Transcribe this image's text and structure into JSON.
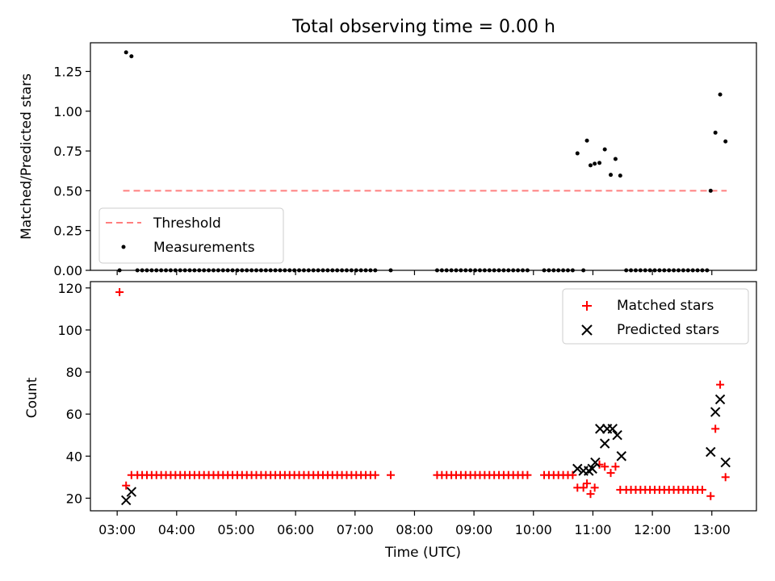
{
  "chart_data": [
    {
      "type": "scatter",
      "title": "Total observing time = 0.00 h",
      "ylabel": "Matched/Predicted stars",
      "xlabel": "",
      "ylim": [
        0,
        1.43
      ],
      "yticks": [
        "0.00",
        "0.25",
        "0.50",
        "0.75",
        "1.00",
        "1.25"
      ],
      "grid": false,
      "legend": {
        "placement": "lower-left",
        "entries": [
          "Threshold",
          "Measurements"
        ]
      },
      "threshold": {
        "name": "Threshold",
        "value": 0.5,
        "x_start": 3.1,
        "x_end": 13.25,
        "color": "#ff7f7f"
      },
      "measurements": {
        "name": "Measurements",
        "color": "#000000",
        "points": [
          [
            3.04,
            0
          ],
          [
            3.15,
            1.37
          ],
          [
            3.24,
            1.345
          ],
          [
            3.34,
            0
          ],
          [
            3.42,
            0
          ],
          [
            3.5,
            0
          ],
          [
            3.58,
            0
          ],
          [
            3.66,
            0
          ],
          [
            3.74,
            0
          ],
          [
            3.82,
            0
          ],
          [
            3.9,
            0
          ],
          [
            3.98,
            0
          ],
          [
            4.06,
            0
          ],
          [
            4.14,
            0
          ],
          [
            4.22,
            0
          ],
          [
            4.3,
            0
          ],
          [
            4.38,
            0
          ],
          [
            4.46,
            0
          ],
          [
            4.54,
            0
          ],
          [
            4.62,
            0
          ],
          [
            4.7,
            0
          ],
          [
            4.78,
            0
          ],
          [
            4.86,
            0
          ],
          [
            4.94,
            0
          ],
          [
            5.02,
            0
          ],
          [
            5.1,
            0
          ],
          [
            5.18,
            0
          ],
          [
            5.26,
            0
          ],
          [
            5.34,
            0
          ],
          [
            5.42,
            0
          ],
          [
            5.5,
            0
          ],
          [
            5.58,
            0
          ],
          [
            5.66,
            0
          ],
          [
            5.74,
            0
          ],
          [
            5.82,
            0
          ],
          [
            5.9,
            0
          ],
          [
            5.98,
            0
          ],
          [
            6.06,
            0
          ],
          [
            6.14,
            0
          ],
          [
            6.22,
            0
          ],
          [
            6.3,
            0
          ],
          [
            6.38,
            0
          ],
          [
            6.46,
            0
          ],
          [
            6.54,
            0
          ],
          [
            6.62,
            0
          ],
          [
            6.7,
            0
          ],
          [
            6.78,
            0
          ],
          [
            6.86,
            0
          ],
          [
            6.94,
            0
          ],
          [
            7.02,
            0
          ],
          [
            7.1,
            0
          ],
          [
            7.18,
            0
          ],
          [
            7.26,
            0
          ],
          [
            7.34,
            0
          ],
          [
            7.6,
            0
          ],
          [
            8.38,
            0
          ],
          [
            8.46,
            0
          ],
          [
            8.54,
            0
          ],
          [
            8.62,
            0
          ],
          [
            8.7,
            0
          ],
          [
            8.78,
            0
          ],
          [
            8.86,
            0
          ],
          [
            8.94,
            0
          ],
          [
            9.02,
            0
          ],
          [
            9.1,
            0
          ],
          [
            9.18,
            0
          ],
          [
            9.26,
            0
          ],
          [
            9.34,
            0
          ],
          [
            9.42,
            0
          ],
          [
            9.5,
            0
          ],
          [
            9.58,
            0
          ],
          [
            9.66,
            0
          ],
          [
            9.74,
            0
          ],
          [
            9.82,
            0
          ],
          [
            9.9,
            0
          ],
          [
            10.18,
            0
          ],
          [
            10.26,
            0
          ],
          [
            10.34,
            0
          ],
          [
            10.42,
            0
          ],
          [
            10.5,
            0
          ],
          [
            10.58,
            0
          ],
          [
            10.66,
            0
          ],
          [
            10.74,
            0.735
          ],
          [
            10.84,
            0
          ],
          [
            10.9,
            0.815
          ],
          [
            10.96,
            0.66
          ],
          [
            11.03,
            0.67
          ],
          [
            11.11,
            0.675
          ],
          [
            11.2,
            0.76
          ],
          [
            11.3,
            0.6
          ],
          [
            11.38,
            0.7
          ],
          [
            11.46,
            0.595
          ],
          [
            11.56,
            0
          ],
          [
            11.64,
            0
          ],
          [
            11.72,
            0
          ],
          [
            11.8,
            0
          ],
          [
            11.88,
            0
          ],
          [
            11.96,
            0
          ],
          [
            12.04,
            0
          ],
          [
            12.12,
            0
          ],
          [
            12.2,
            0
          ],
          [
            12.28,
            0
          ],
          [
            12.36,
            0
          ],
          [
            12.44,
            0
          ],
          [
            12.52,
            0
          ],
          [
            12.6,
            0
          ],
          [
            12.68,
            0
          ],
          [
            12.76,
            0
          ],
          [
            12.84,
            0
          ],
          [
            12.92,
            0
          ],
          [
            12.98,
            0.5
          ],
          [
            13.06,
            0.865
          ],
          [
            13.14,
            1.105
          ],
          [
            13.23,
            0.81
          ]
        ]
      }
    },
    {
      "type": "scatter",
      "title": "",
      "ylabel": "Count",
      "xlabel": "Time (UTC)",
      "ylim": [
        14,
        123
      ],
      "yticks": [
        "20",
        "40",
        "60",
        "80",
        "100",
        "120"
      ],
      "xlim": [
        2.55,
        13.75
      ],
      "xticks": [
        "03:00",
        "04:00",
        "05:00",
        "06:00",
        "07:00",
        "08:00",
        "09:00",
        "10:00",
        "11:00",
        "12:00",
        "13:00"
      ],
      "grid": false,
      "legend": {
        "placement": "top-right",
        "entries": [
          "Matched stars",
          "Predicted stars"
        ]
      },
      "series": [
        {
          "name": "Matched stars",
          "marker": "+",
          "color": "#ff0000",
          "points": [
            [
              3.04,
              118
            ],
            [
              3.15,
              26
            ],
            [
              3.24,
              31
            ],
            [
              3.34,
              31
            ],
            [
              3.42,
              31
            ],
            [
              3.5,
              31
            ],
            [
              3.58,
              31
            ],
            [
              3.66,
              31
            ],
            [
              3.74,
              31
            ],
            [
              3.82,
              31
            ],
            [
              3.9,
              31
            ],
            [
              3.98,
              31
            ],
            [
              4.06,
              31
            ],
            [
              4.14,
              31
            ],
            [
              4.22,
              31
            ],
            [
              4.3,
              31
            ],
            [
              4.38,
              31
            ],
            [
              4.46,
              31
            ],
            [
              4.54,
              31
            ],
            [
              4.62,
              31
            ],
            [
              4.7,
              31
            ],
            [
              4.78,
              31
            ],
            [
              4.86,
              31
            ],
            [
              4.94,
              31
            ],
            [
              5.02,
              31
            ],
            [
              5.1,
              31
            ],
            [
              5.18,
              31
            ],
            [
              5.26,
              31
            ],
            [
              5.34,
              31
            ],
            [
              5.42,
              31
            ],
            [
              5.5,
              31
            ],
            [
              5.58,
              31
            ],
            [
              5.66,
              31
            ],
            [
              5.74,
              31
            ],
            [
              5.82,
              31
            ],
            [
              5.9,
              31
            ],
            [
              5.98,
              31
            ],
            [
              6.06,
              31
            ],
            [
              6.14,
              31
            ],
            [
              6.22,
              31
            ],
            [
              6.3,
              31
            ],
            [
              6.38,
              31
            ],
            [
              6.46,
              31
            ],
            [
              6.54,
              31
            ],
            [
              6.62,
              31
            ],
            [
              6.7,
              31
            ],
            [
              6.78,
              31
            ],
            [
              6.86,
              31
            ],
            [
              6.94,
              31
            ],
            [
              7.02,
              31
            ],
            [
              7.1,
              31
            ],
            [
              7.18,
              31
            ],
            [
              7.26,
              31
            ],
            [
              7.34,
              31
            ],
            [
              7.6,
              31
            ],
            [
              8.38,
              31
            ],
            [
              8.46,
              31
            ],
            [
              8.54,
              31
            ],
            [
              8.62,
              31
            ],
            [
              8.7,
              31
            ],
            [
              8.78,
              31
            ],
            [
              8.86,
              31
            ],
            [
              8.94,
              31
            ],
            [
              9.02,
              31
            ],
            [
              9.1,
              31
            ],
            [
              9.18,
              31
            ],
            [
              9.26,
              31
            ],
            [
              9.34,
              31
            ],
            [
              9.42,
              31
            ],
            [
              9.5,
              31
            ],
            [
              9.58,
              31
            ],
            [
              9.66,
              31
            ],
            [
              9.74,
              31
            ],
            [
              9.82,
              31
            ],
            [
              9.9,
              31
            ],
            [
              10.18,
              31
            ],
            [
              10.26,
              31
            ],
            [
              10.34,
              31
            ],
            [
              10.42,
              31
            ],
            [
              10.5,
              31
            ],
            [
              10.58,
              31
            ],
            [
              10.66,
              31
            ],
            [
              10.74,
              25
            ],
            [
              10.84,
              25
            ],
            [
              10.9,
              27
            ],
            [
              10.96,
              22
            ],
            [
              11.03,
              25
            ],
            [
              11.11,
              36
            ],
            [
              11.2,
              35
            ],
            [
              11.3,
              32
            ],
            [
              11.38,
              35
            ],
            [
              11.46,
              24
            ],
            [
              11.56,
              24
            ],
            [
              11.64,
              24
            ],
            [
              11.72,
              24
            ],
            [
              11.8,
              24
            ],
            [
              11.88,
              24
            ],
            [
              11.96,
              24
            ],
            [
              12.04,
              24
            ],
            [
              12.12,
              24
            ],
            [
              12.2,
              24
            ],
            [
              12.28,
              24
            ],
            [
              12.36,
              24
            ],
            [
              12.44,
              24
            ],
            [
              12.52,
              24
            ],
            [
              12.6,
              24
            ],
            [
              12.68,
              24
            ],
            [
              12.76,
              24
            ],
            [
              12.84,
              24
            ],
            [
              12.98,
              21
            ],
            [
              13.06,
              53
            ],
            [
              13.14,
              74
            ],
            [
              13.23,
              30
            ]
          ]
        },
        {
          "name": "Predicted stars",
          "marker": "x",
          "color": "#000000",
          "points": [
            [
              3.15,
              19
            ],
            [
              3.24,
              23
            ],
            [
              10.74,
              34
            ],
            [
              10.84,
              33
            ],
            [
              10.93,
              33
            ],
            [
              10.99,
              34
            ],
            [
              11.04,
              37
            ],
            [
              11.12,
              53
            ],
            [
              11.2,
              46
            ],
            [
              11.24,
              53
            ],
            [
              11.33,
              53
            ],
            [
              11.41,
              50
            ],
            [
              11.48,
              40
            ],
            [
              12.98,
              42
            ],
            [
              13.06,
              61
            ],
            [
              13.14,
              67
            ],
            [
              13.23,
              37
            ]
          ]
        }
      ]
    }
  ]
}
